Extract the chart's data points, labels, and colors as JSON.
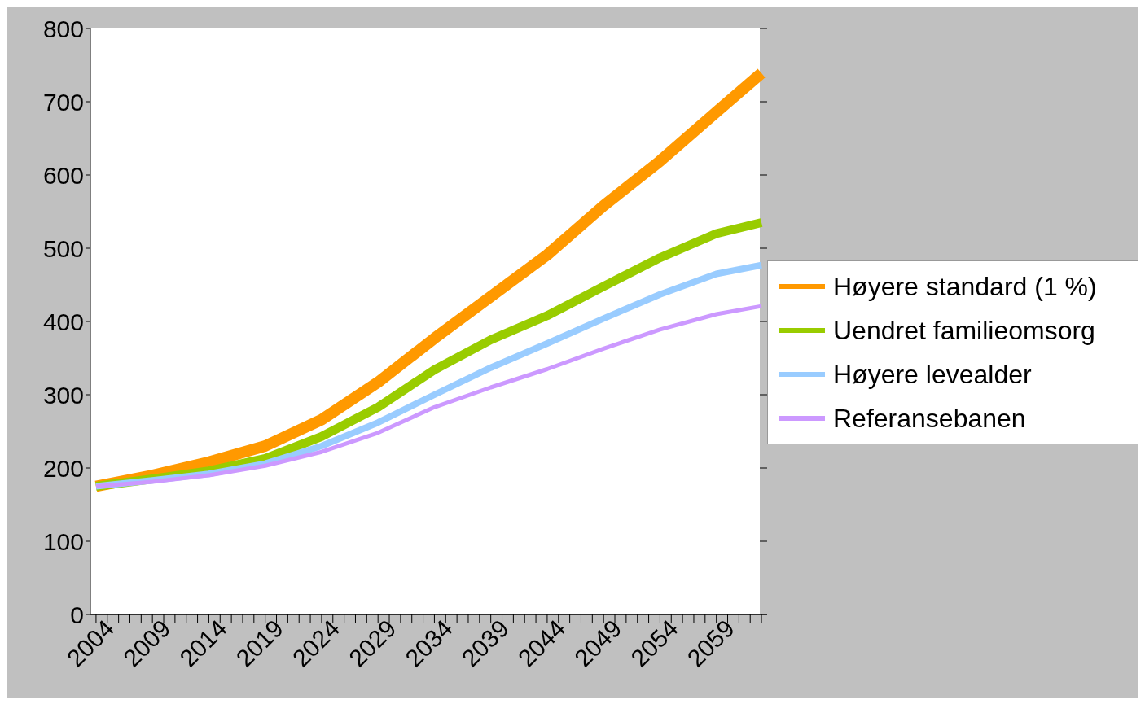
{
  "chart_data": {
    "type": "line",
    "xlim": [
      2003.5,
      2063.5
    ],
    "xticks": [
      2004,
      {
        "value": 2005,
        "label": null
      },
      {
        "value": 2006,
        "label": null
      },
      {
        "value": 2007,
        "label": null
      },
      {
        "value": 2008,
        "label": null
      },
      2009,
      {
        "value": 2010,
        "label": null
      },
      {
        "value": 2011,
        "label": null
      },
      {
        "value": 2012,
        "label": null
      },
      {
        "value": 2013,
        "label": null
      },
      2014,
      {
        "value": 2015,
        "label": null
      },
      {
        "value": 2016,
        "label": null
      },
      {
        "value": 2017,
        "label": null
      },
      {
        "value": 2018,
        "label": null
      },
      2019,
      {
        "value": 2020,
        "label": null
      },
      {
        "value": 2021,
        "label": null
      },
      {
        "value": 2022,
        "label": null
      },
      {
        "value": 2023,
        "label": null
      },
      2024,
      {
        "value": 2025,
        "label": null
      },
      {
        "value": 2026,
        "label": null
      },
      {
        "value": 2027,
        "label": null
      },
      {
        "value": 2028,
        "label": null
      },
      2029,
      {
        "value": 2030,
        "label": null
      },
      {
        "value": 2031,
        "label": null
      },
      {
        "value": 2032,
        "label": null
      },
      {
        "value": 2033,
        "label": null
      },
      2034,
      {
        "value": 2035,
        "label": null
      },
      {
        "value": 2036,
        "label": null
      },
      {
        "value": 2037,
        "label": null
      },
      {
        "value": 2038,
        "label": null
      },
      2039,
      {
        "value": 2040,
        "label": null
      },
      {
        "value": 2041,
        "label": null
      },
      {
        "value": 2042,
        "label": null
      },
      {
        "value": 2043,
        "label": null
      },
      2044,
      {
        "value": 2045,
        "label": null
      },
      {
        "value": 2046,
        "label": null
      },
      {
        "value": 2047,
        "label": null
      },
      {
        "value": 2048,
        "label": null
      },
      2049,
      {
        "value": 2050,
        "label": null
      },
      {
        "value": 2051,
        "label": null
      },
      {
        "value": 2052,
        "label": null
      },
      {
        "value": 2053,
        "label": null
      },
      2054,
      {
        "value": 2055,
        "label": null
      },
      {
        "value": 2056,
        "label": null
      },
      {
        "value": 2057,
        "label": null
      },
      {
        "value": 2058,
        "label": null
      },
      2059,
      {
        "value": 2060,
        "label": null
      },
      {
        "value": 2061,
        "label": null
      },
      {
        "value": 2062,
        "label": null
      },
      {
        "value": 2063,
        "label": null
      }
    ],
    "x": [
      2004,
      2009,
      2014,
      2019,
      2024,
      2029,
      2034,
      2039,
      2044,
      2049,
      2054,
      2059,
      2063
    ],
    "ylim": [
      0,
      800
    ],
    "yticks": [
      0,
      100,
      200,
      300,
      400,
      500,
      600,
      700,
      800
    ],
    "grid": "y",
    "legend": "right",
    "marker": "none",
    "line_style": "solid",
    "series": [
      {
        "name": "Høyere standard (1 %)",
        "color": "#ff9900",
        "values": [
          175,
          190,
          208,
          230,
          266,
          317,
          377,
          434,
          491,
          558,
          619,
          686,
          739
        ]
      },
      {
        "name": "Uendret familieomsorg",
        "color": "#99cc00",
        "values": [
          175,
          185,
          196,
          213,
          243,
          283,
          334,
          375,
          408,
          448,
          487,
          520,
          535
        ]
      },
      {
        "name": "Høyere levealder",
        "color": "#99ccff",
        "values": [
          175,
          183,
          192,
          206,
          230,
          262,
          300,
          337,
          370,
          404,
          437,
          465,
          477
        ]
      },
      {
        "name": "Referansebanen",
        "color": "#cc99ff",
        "values": [
          175,
          181,
          190,
          203,
          222,
          248,
          283,
          310,
          335,
          363,
          389,
          410,
          421
        ]
      }
    ]
  }
}
